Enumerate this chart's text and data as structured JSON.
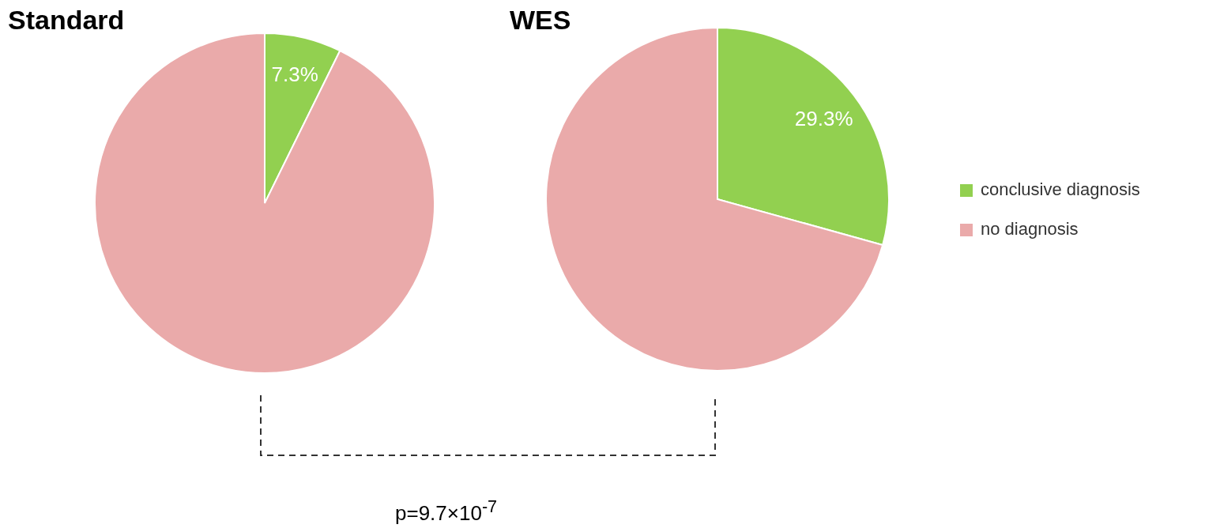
{
  "chart_data": [
    {
      "type": "pie",
      "title": "Standard",
      "categories": [
        null,
        null
      ],
      "values": [
        7.3,
        92.7
      ],
      "colors": [
        "#92d050",
        "#eaaaaa"
      ],
      "value_labels": [
        "7.3%",
        null
      ],
      "legend": false
    },
    {
      "type": "pie",
      "title": "WES",
      "categories": [
        "conclusive diagnosis",
        "no diagnosis"
      ],
      "values": [
        29.3,
        70.7
      ],
      "colors": [
        "#92d050",
        "#eaaaaa"
      ],
      "value_labels": [
        "29.3%",
        null
      ],
      "legend": "right",
      "annotations": [
        "p=9.7×10$^{-7}$"
      ]
    }
  ]
}
